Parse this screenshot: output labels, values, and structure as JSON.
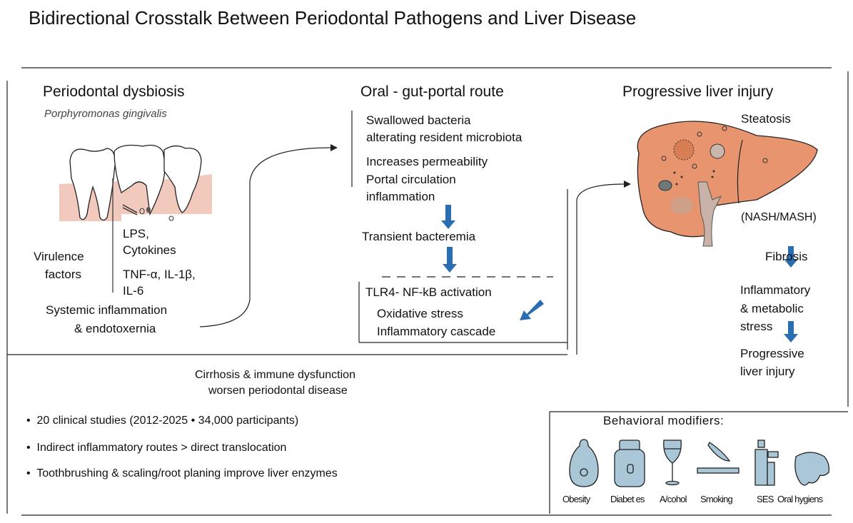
{
  "title": "Bidirectional Crosstalk Between Periodontal Pathogens and Liver Disease",
  "left": {
    "heading": "Periodontal dysbiosis",
    "subheading": "Porphyromonas  gingivalis",
    "lps": "LPS,",
    "cytokines": "Cytokines",
    "tnf": "TNF-α, IL-1β,",
    "il6": "IL-6",
    "virulence1": "Virulence",
    "virulence2": "factors",
    "systemic1": "Systemic  inflammation",
    "systemic2": "& endotoxernia"
  },
  "middle": {
    "heading": "Oral - gut-portal  route",
    "swallowed1": "Swallowed bacteria",
    "swallowed2": "alterating  resident microbiota",
    "perm": "Increases permeability",
    "portal1": "Portal circulation",
    "portal2": "inflammation",
    "bacteremia": "Transient bacteremia",
    "tlr4": "TLR4-  NF-kB activation",
    "oxidative": "Oxidative stress",
    "cascade": "Inflammatory cascade"
  },
  "right": {
    "heading": "Progressive liver injury",
    "steatosis": "Steatosis",
    "nash": "(NASH/MASH)",
    "fibrosis": "Fibrosis",
    "stress1": "Inflammatory",
    "stress2": "& metabolic",
    "stress3": "stress",
    "injury1": "Progressive",
    "injury2": "liver injury"
  },
  "bottom": {
    "cirrhosis1": "Cirrhosis & immune dysfunction",
    "cirrhosis2": "worsen periodontal disease",
    "bullets": [
      "20 clinical studies (2012-2025 • 34,000 participants)",
      "Indirect inflammatory routes > direct translocation",
      "Toothbrushing & scaling/root planing improve liver enzymes"
    ]
  },
  "modifiers": {
    "heading": "Behavioral modifiers:",
    "items": [
      "Obesity",
      "Diabet es",
      "A/cohol",
      "Smoking",
      "SES",
      "Oral hygiens"
    ]
  },
  "colors": {
    "arrow_blue": "#2a6db0",
    "liver": "#e8956f",
    "gum": "#f2c9bd",
    "icon_fill": "#a9c7d6"
  }
}
